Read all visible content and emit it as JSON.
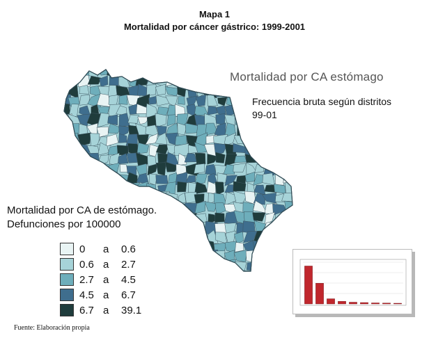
{
  "header": {
    "map_number": "Mapa 1",
    "title": "Mortalidad por cáncer gástrico: 1999-2001"
  },
  "map": {
    "heading": "Mortalidad por CA estómago",
    "subtitle": "Frecuencia bruta según distritos 99-01"
  },
  "legend": {
    "title_line1": "Mortalidad por CA de estómago.",
    "title_line2": "Defunciones por 100000",
    "classes": [
      {
        "lo": "0",
        "sep": "a",
        "hi": "0.6",
        "color": "#e9f4f4"
      },
      {
        "lo": "0.6",
        "sep": "a",
        "hi": "2.7",
        "color": "#a6d3d8"
      },
      {
        "lo": "2.7",
        "sep": "a",
        "hi": "4.5",
        "color": "#6eaebb"
      },
      {
        "lo": "4.5",
        "sep": "a",
        "hi": "6.7",
        "color": "#3f6e8e"
      },
      {
        "lo": "6.7",
        "sep": "a",
        "hi": "39.1",
        "color": "#1f3c3c"
      }
    ]
  },
  "chart_data": {
    "type": "bar",
    "values": [
      22,
      12,
      3,
      1.5,
      1,
      0.8,
      0.6,
      0.5,
      0.4
    ],
    "bar_color": "#c0272d"
  },
  "footer": {
    "source": "Fuente: Elaboración propia"
  }
}
